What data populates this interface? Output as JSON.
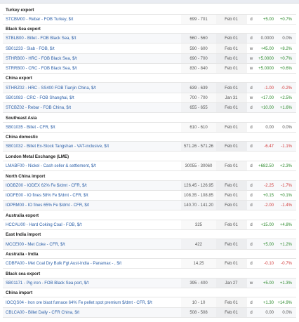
{
  "sections": [
    {
      "title": "Turkey export",
      "rows": [
        {
          "name": "STCBM00 - Rebar - FOB Turkey, $/t",
          "price": "699 - 701",
          "date": "Feb 01",
          "freq": "d",
          "chg": "+5.00",
          "pct": "+0.7%",
          "dir": "pos"
        }
      ]
    },
    {
      "title": "Black Sea export",
      "rows": [
        {
          "name": "STBLB00 - Billet - FOB Black Sea, $/t",
          "price": "560 - 560",
          "date": "Feb 01",
          "freq": "d",
          "chg": "0.0000",
          "pct": "0.0%",
          "dir": "zero"
        },
        {
          "name": "SB01233 - Slab - FOB, $/t",
          "price": "590 - 600",
          "date": "Feb 01",
          "freq": "w",
          "chg": "+45.00",
          "pct": "+8.2%",
          "dir": "pos"
        },
        {
          "name": "STHRB00 - HRC - FOB Black Sea, $/t",
          "price": "690 - 700",
          "date": "Feb 01",
          "freq": "w",
          "chg": "+5.0000",
          "pct": "+0.7%",
          "dir": "pos"
        },
        {
          "name": "STRRB00 - CRC - FOB Black Sea, $/t",
          "price": "830 - 840",
          "date": "Feb 01",
          "freq": "w",
          "chg": "+5.0000",
          "pct": "+0.6%",
          "dir": "pos"
        }
      ]
    },
    {
      "title": "China export",
      "rows": [
        {
          "name": "STHRZ02 - HRC - SS400 FOB Tianjin China, $/t",
          "price": "639 - 639",
          "date": "Feb 01",
          "freq": "d",
          "chg": "-1.00",
          "pct": "-0.2%",
          "dir": "neg"
        },
        {
          "name": "SB01083 - CRC - FOB Shanghai, $/t",
          "price": "700 - 700",
          "date": "Jan 31",
          "freq": "w",
          "chg": "+17.00",
          "pct": "+2.5%",
          "dir": "pos"
        },
        {
          "name": "STCBZ02 - Rebar - FOB China, $/t",
          "price": "655 - 655",
          "date": "Feb 01",
          "freq": "d",
          "chg": "+10.00",
          "pct": "+1.6%",
          "dir": "pos"
        }
      ]
    },
    {
      "title": "Southeast Asia",
      "rows": [
        {
          "name": "SB01035 - Billet - CFR, $/t",
          "price": "610 - 610",
          "date": "Feb 01",
          "freq": "d",
          "chg": "0.00",
          "pct": "0.0%",
          "dir": "zero"
        }
      ]
    },
    {
      "title": "China domestic",
      "rows": [
        {
          "name": "SB01032 - Billet Ex-Stock Tangshan - VAT-inclusive, $/t",
          "price": "571.26 - 571.26",
          "date": "Feb 01",
          "freq": "d",
          "chg": "-6.47",
          "pct": "-1.1%",
          "dir": "neg"
        }
      ]
    },
    {
      "title": "London Metal Exchange (LME)",
      "rows": [
        {
          "name": "LMABF00 - Nickel - Cash seller & settlement, $/t",
          "price": "30055 - 30060",
          "date": "Feb 01",
          "freq": "d",
          "chg": "+682.50",
          "pct": "+2.3%",
          "dir": "pos"
        }
      ]
    },
    {
      "title": "North China import",
      "rows": [
        {
          "name": "IODBZ00 - IODEX 62% Fe $/dmt - CFR, $/t",
          "price": "126.45 - 126.95",
          "date": "Feb 01",
          "freq": "d",
          "chg": "-2.25",
          "pct": "-1.7%",
          "dir": "neg"
        },
        {
          "name": "IODFE00 - IO fines 58% Fe $/dmt - CFR, $/t",
          "price": "108.35 - 108.85",
          "date": "Feb 01",
          "freq": "d",
          "chg": "+0.15",
          "pct": "+0.1%",
          "dir": "pos"
        },
        {
          "name": "IOPRM00 - IO fines 65% Fe $/dmt - CFR, $/t",
          "price": "140.70 - 141.20",
          "date": "Feb 01",
          "freq": "d",
          "chg": "-2.00",
          "pct": "-1.4%",
          "dir": "neg"
        }
      ]
    },
    {
      "title": "Australia export",
      "rows": [
        {
          "name": "HCCAU00 - Hard Coking Coal - FOB, $/t",
          "price": "325",
          "date": "Feb 01",
          "freq": "d",
          "chg": "+15.00",
          "pct": "+4.8%",
          "dir": "pos"
        }
      ]
    },
    {
      "title": "East India import",
      "rows": [
        {
          "name": "MCCEI00 - Met Coke - CFR, $/t",
          "price": "422",
          "date": "Feb 01",
          "freq": "d",
          "chg": "+5.00",
          "pct": "+1.2%",
          "dir": "pos"
        }
      ]
    },
    {
      "title": "Australia - India",
      "rows": [
        {
          "name": "CDBFA00 - Met Coal Dry Bulk Fgt Aust-India - Panamax - , $/t",
          "price": "14.25",
          "date": "Feb 01",
          "freq": "d",
          "chg": "-0.10",
          "pct": "-0.7%",
          "dir": "neg"
        }
      ]
    },
    {
      "title": "Black sea export",
      "rows": [
        {
          "name": "SB01171 - Pig iron - FOB Black Sea port, $/t",
          "price": "395 - 400",
          "date": "Jan 27",
          "freq": "w",
          "chg": "+5.00",
          "pct": "+1.3%",
          "dir": "pos"
        }
      ]
    },
    {
      "title": "China import",
      "rows": [
        {
          "name": "IOCQS04 - Iron ore blast furnace 64% Fe pellet spot premium $/dmt - CFR, $/t",
          "price": "10 - 10",
          "date": "Feb 01",
          "freq": "d",
          "chg": "+1.30",
          "pct": "+14.9%",
          "dir": "pos"
        },
        {
          "name": "CBLCA00 - Billet Daily - CFR China, $/t",
          "price": "508 - 508",
          "date": "Feb 01",
          "freq": "d",
          "chg": "0.00",
          "pct": "0.0%",
          "dir": "zero"
        }
      ]
    }
  ]
}
